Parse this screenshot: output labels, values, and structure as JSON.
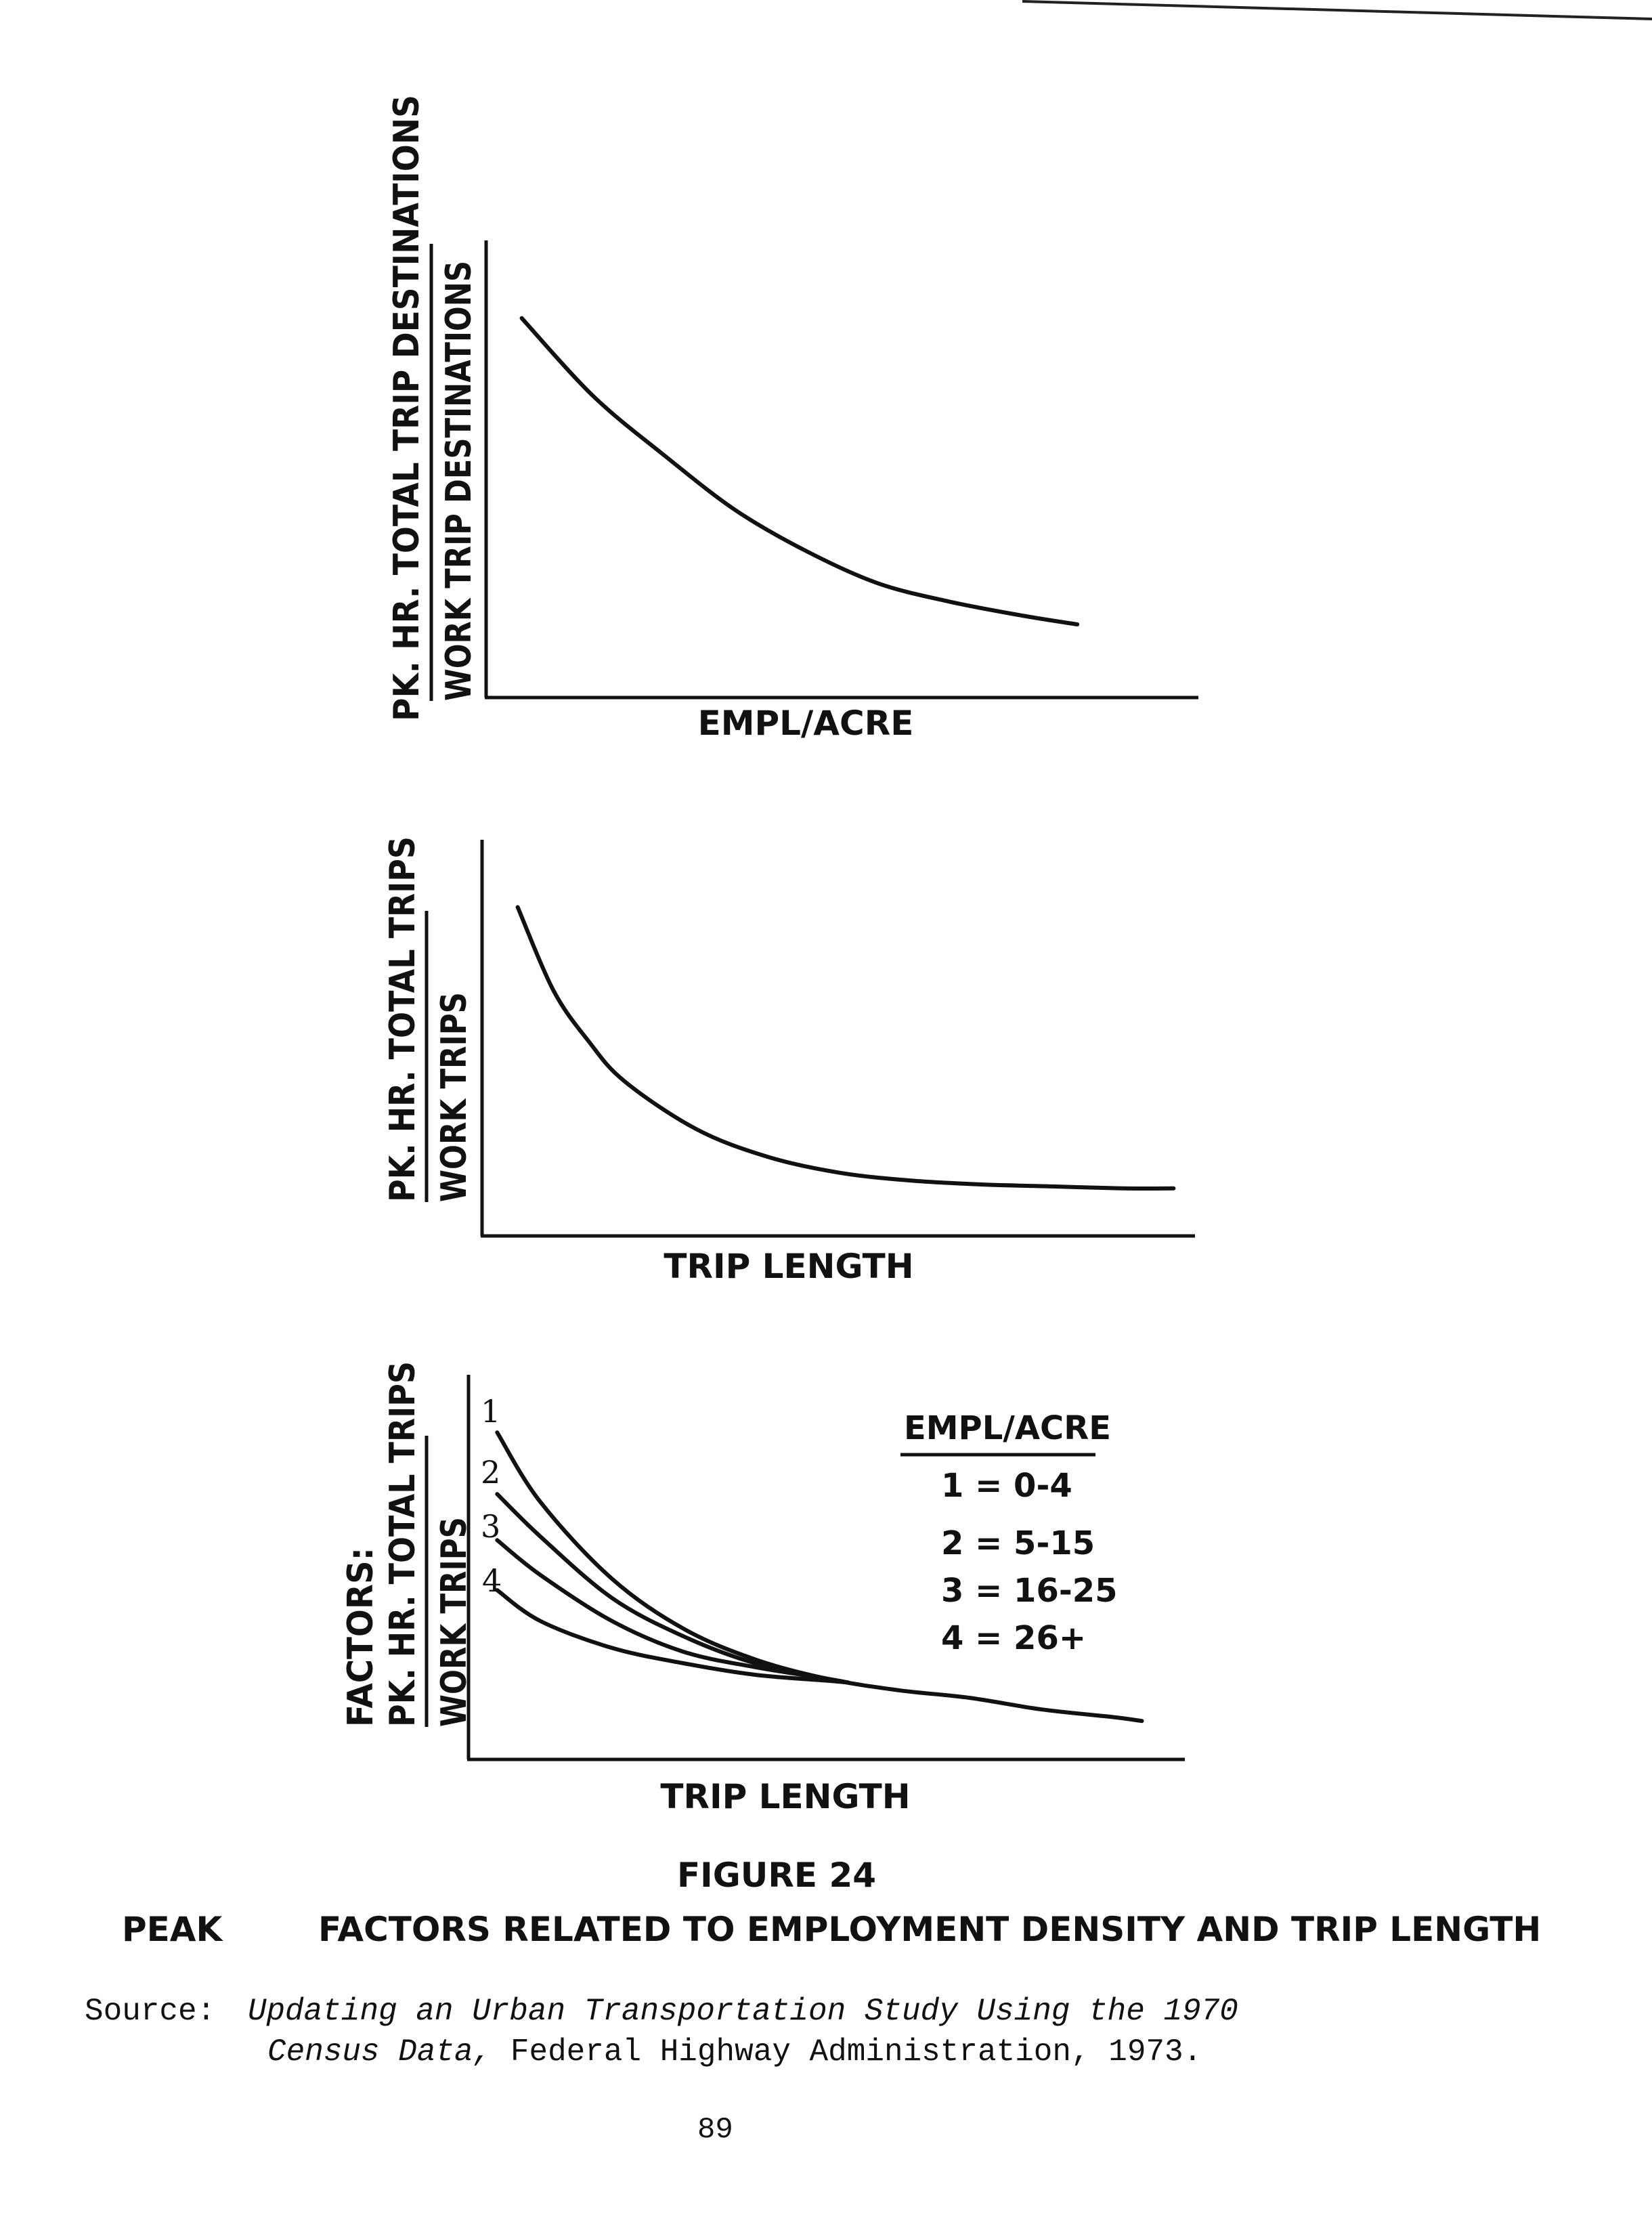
{
  "chart_data": [
    {
      "type": "line",
      "title": "",
      "xlabel": "EMPL/ACRE",
      "ylabel_numerator": "PK. HR. TOTAL TRIP DESTINATIONS",
      "ylabel_denominator": "WORK TRIP DESTINATIONS",
      "xlim": [
        0,
        1
      ],
      "ylim": [
        0,
        1
      ],
      "grid": false,
      "series": [
        {
          "x": [
            0.05,
            0.15,
            0.25,
            0.35,
            0.45,
            0.55,
            0.65,
            0.75,
            0.83
          ],
          "y": [
            0.83,
            0.66,
            0.53,
            0.41,
            0.32,
            0.25,
            0.21,
            0.18,
            0.16
          ]
        }
      ]
    },
    {
      "type": "line",
      "title": "",
      "xlabel": "TRIP LENGTH",
      "ylabel_numerator": "PK. HR. TOTAL TRIPS",
      "ylabel_denominator": "WORK TRIPS",
      "xlim": [
        0,
        1
      ],
      "ylim": [
        0,
        1
      ],
      "grid": false,
      "series": [
        {
          "x": [
            0.05,
            0.1,
            0.15,
            0.2,
            0.3,
            0.4,
            0.5,
            0.6,
            0.7,
            0.8,
            0.9,
            0.97
          ],
          "y": [
            0.83,
            0.62,
            0.49,
            0.39,
            0.27,
            0.2,
            0.16,
            0.14,
            0.13,
            0.125,
            0.12,
            0.12
          ]
        }
      ]
    },
    {
      "type": "line",
      "title": "",
      "xlabel": "TRIP LENGTH",
      "ylabel_prefix": "FACTORS:",
      "ylabel_numerator": "PK. HR. TOTAL TRIPS",
      "ylabel_denominator": "WORK TRIPS",
      "xlim": [
        0,
        1
      ],
      "ylim": [
        0,
        1
      ],
      "grid": false,
      "legend_position": "top-right",
      "legend_title": "EMPL/ACRE",
      "series": [
        {
          "name": "1",
          "legend": "1 = 0-4",
          "x": [
            0.04,
            0.1,
            0.2,
            0.3,
            0.4,
            0.5,
            0.6,
            0.7,
            0.8,
            0.9,
            0.94
          ],
          "y": [
            0.85,
            0.67,
            0.47,
            0.34,
            0.26,
            0.21,
            0.18,
            0.16,
            0.13,
            0.11,
            0.1
          ]
        },
        {
          "name": "2",
          "legend": "2 = 5-15",
          "x": [
            0.04,
            0.1,
            0.2,
            0.3,
            0.4,
            0.5,
            0.53
          ],
          "y": [
            0.69,
            0.58,
            0.42,
            0.32,
            0.25,
            0.21,
            0.2
          ]
        },
        {
          "name": "3",
          "legend": "3 = 16-25",
          "x": [
            0.04,
            0.1,
            0.2,
            0.3,
            0.4,
            0.5,
            0.53
          ],
          "y": [
            0.57,
            0.48,
            0.36,
            0.28,
            0.24,
            0.21,
            0.2
          ]
        },
        {
          "name": "4",
          "legend": "4 = 26+",
          "x": [
            0.04,
            0.1,
            0.2,
            0.3,
            0.4,
            0.5,
            0.53
          ],
          "y": [
            0.44,
            0.36,
            0.29,
            0.25,
            0.22,
            0.205,
            0.2
          ]
        }
      ]
    }
  ],
  "caption": {
    "figure": "FIGURE 24",
    "title_left": "PEAK",
    "title": "FACTORS RELATED TO EMPLOYMENT DENSITY AND TRIP LENGTH"
  },
  "source": {
    "label": "Source:",
    "italic1": "Updating an Urban Transportation Study Using the 1970",
    "italic2": "Census Data,",
    "rest": " Federal Highway Administration, 1973."
  },
  "page_number": "89"
}
